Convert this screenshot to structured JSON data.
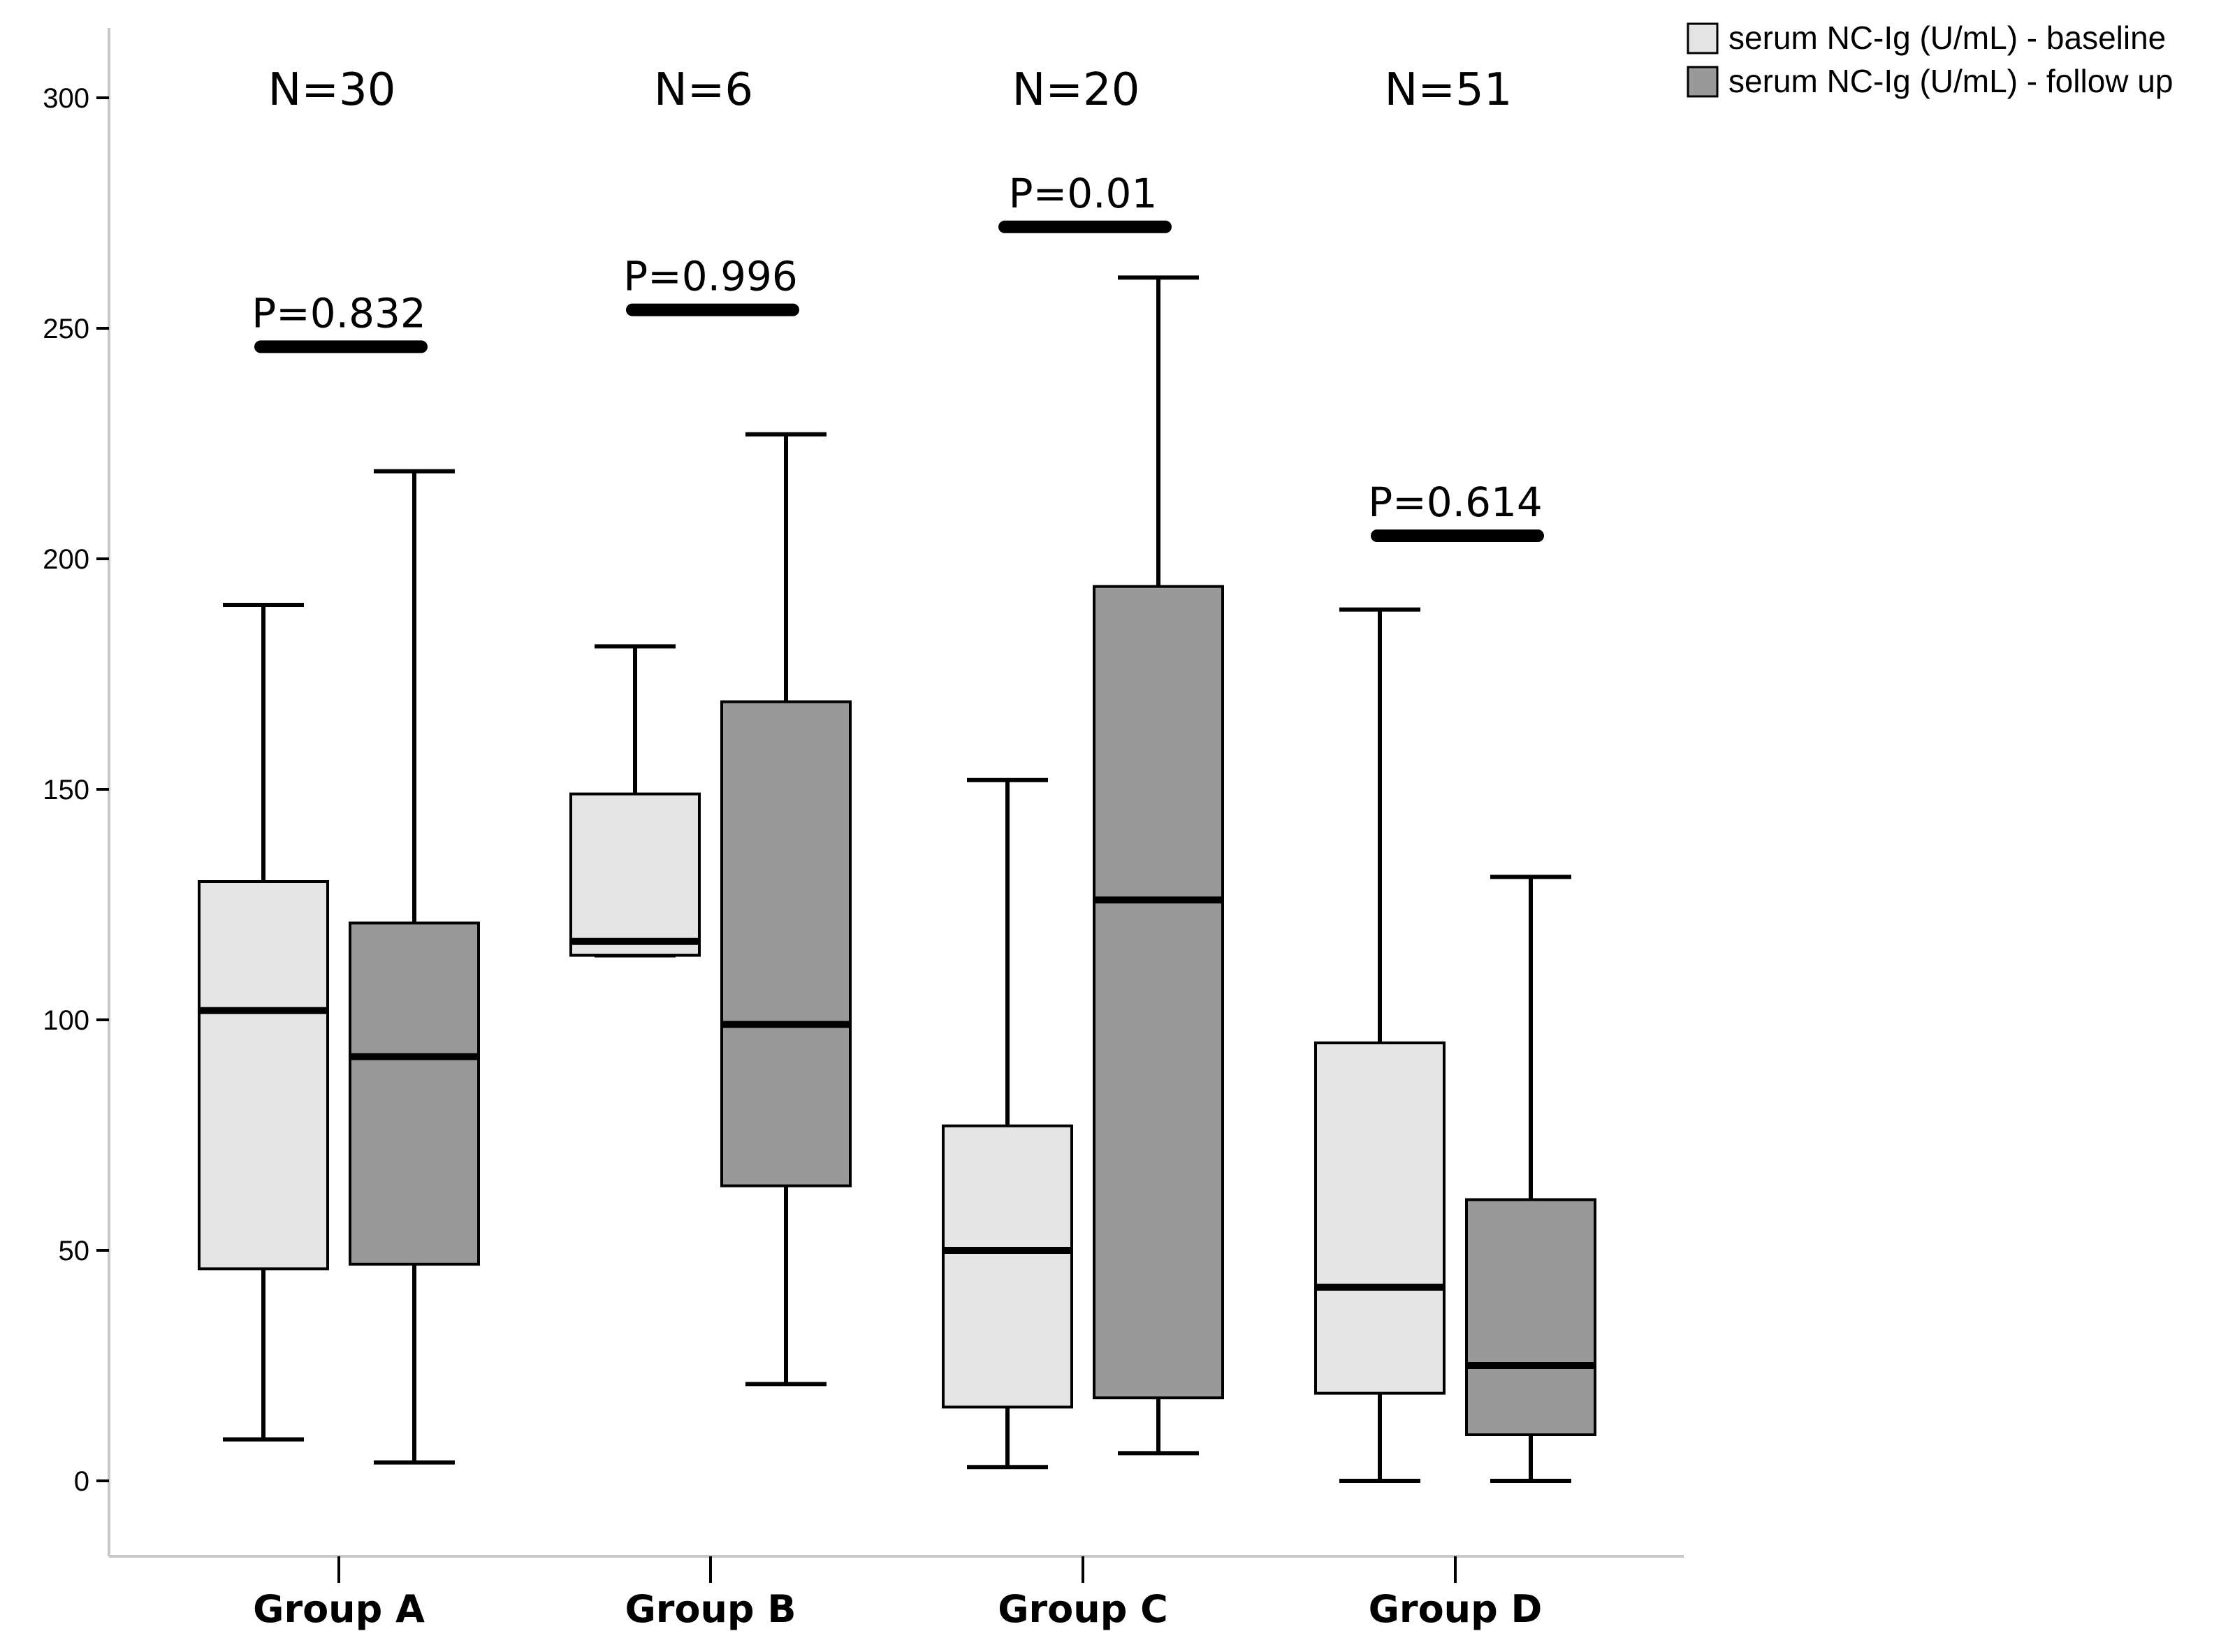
{
  "chart_data": {
    "type": "boxplot",
    "title": "",
    "xlabel": "",
    "ylabel": "",
    "ylim": [
      -15,
      315
    ],
    "yticks": [
      0,
      50,
      100,
      150,
      200,
      250,
      300
    ],
    "grid": false,
    "legend_position": "top-right",
    "categories": [
      "Group A",
      "Group B",
      "Group C",
      "Group D"
    ],
    "annotations": {
      "n_labels": [
        "N=30",
        "N=6",
        "N=20",
        "N=51"
      ],
      "p_values": [
        {
          "text": "P=0.832",
          "y": 246
        },
        {
          "text": "P=0.996",
          "y": 254
        },
        {
          "text": "P=0.01",
          "y": 272
        },
        {
          "text": "P=0.614",
          "y": 205
        }
      ]
    },
    "series": [
      {
        "name": "serum NC-Ig (U/mL) - baseline",
        "color": "#e4e4e4",
        "boxes": [
          {
            "min": 9,
            "q1": 46,
            "median": 102,
            "q3": 130,
            "max": 190
          },
          {
            "min": 114,
            "q1": 114,
            "median": 117,
            "q3": 149,
            "max": 181
          },
          {
            "min": 3,
            "q1": 16,
            "median": 50,
            "q3": 77,
            "max": 152
          },
          {
            "min": 0,
            "q1": 19,
            "median": 42,
            "q3": 95,
            "max": 189
          }
        ]
      },
      {
        "name": "serum NC-Ig (U/mL) - follow up",
        "color": "#999999",
        "boxes": [
          {
            "min": 4,
            "q1": 47,
            "median": 92,
            "q3": 121,
            "max": 219
          },
          {
            "min": 21,
            "q1": 64,
            "median": 99,
            "q3": 169,
            "max": 227
          },
          {
            "min": 6,
            "q1": 18,
            "median": 126,
            "q3": 194,
            "max": 261
          },
          {
            "min": 0,
            "q1": 10,
            "median": 25,
            "q3": 61,
            "max": 131
          }
        ]
      }
    ]
  },
  "legend": {
    "labels": [
      "serum NC-Ig (U/mL) - baseline",
      "serum NC-Ig (U/mL) - follow up"
    ]
  }
}
